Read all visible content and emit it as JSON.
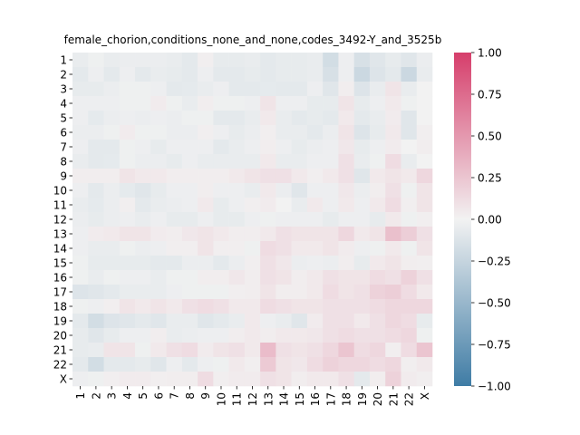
{
  "chart_data": {
    "type": "heatmap",
    "title": "female_chorion,conditions_none_and_none,codes_3492-Y_and_3525b",
    "xlabel": "",
    "ylabel": "",
    "row_labels": [
      "1",
      "2",
      "3",
      "4",
      "5",
      "6",
      "7",
      "8",
      "9",
      "10",
      "11",
      "12",
      "13",
      "14",
      "15",
      "16",
      "17",
      "18",
      "19",
      "20",
      "21",
      "22",
      "X"
    ],
    "col_labels": [
      "1",
      "2",
      "3",
      "4",
      "5",
      "6",
      "7",
      "8",
      "9",
      "10",
      "11",
      "12",
      "13",
      "14",
      "15",
      "16",
      "17",
      "18",
      "19",
      "20",
      "21",
      "22",
      "X"
    ],
    "colorbar": {
      "vmin": -1.0,
      "vmax": 1.0,
      "ticks": [
        "1.00",
        "0.75",
        "0.50",
        "0.25",
        "0.00",
        "−0.25",
        "−0.50",
        "−0.75",
        "−1.00"
      ],
      "colormap": [
        "#3f7ca5",
        "#f2f2f2",
        "#d63e6b"
      ]
    },
    "values": [
      [
        -0.05,
        -0.02,
        -0.05,
        -0.04,
        -0.04,
        -0.04,
        -0.05,
        -0.08,
        0.02,
        -0.06,
        -0.06,
        -0.05,
        -0.08,
        -0.06,
        -0.06,
        -0.05,
        -0.18,
        -0.03,
        -0.15,
        -0.1,
        -0.06,
        -0.1,
        -0.04
      ],
      [
        -0.08,
        -0.03,
        -0.08,
        -0.03,
        -0.08,
        -0.05,
        -0.06,
        -0.08,
        -0.03,
        -0.08,
        -0.08,
        -0.06,
        -0.08,
        -0.06,
        -0.06,
        -0.05,
        -0.15,
        -0.03,
        -0.22,
        -0.12,
        -0.08,
        -0.22,
        -0.05
      ],
      [
        -0.06,
        -0.06,
        -0.04,
        -0.02,
        -0.02,
        -0.03,
        -0.08,
        -0.07,
        -0.05,
        -0.03,
        -0.08,
        -0.08,
        -0.07,
        -0.08,
        -0.08,
        -0.03,
        -0.1,
        0.03,
        -0.12,
        -0.05,
        0.08,
        -0.05,
        0.0
      ],
      [
        -0.03,
        -0.03,
        -0.03,
        -0.02,
        -0.02,
        0.04,
        -0.02,
        -0.05,
        0.03,
        -0.02,
        -0.02,
        -0.03,
        0.08,
        -0.03,
        -0.03,
        -0.06,
        -0.06,
        0.08,
        -0.06,
        -0.03,
        0.05,
        -0.02,
        0.0
      ],
      [
        -0.03,
        -0.07,
        -0.04,
        -0.03,
        -0.04,
        -0.03,
        -0.04,
        -0.02,
        -0.02,
        -0.08,
        -0.08,
        -0.05,
        0.05,
        -0.05,
        -0.08,
        -0.06,
        -0.08,
        0.05,
        -0.08,
        -0.05,
        0.04,
        -0.1,
        0.0
      ],
      [
        -0.04,
        -0.04,
        -0.02,
        0.04,
        -0.02,
        -0.02,
        -0.04,
        -0.04,
        0.02,
        -0.03,
        -0.06,
        -0.04,
        0.02,
        -0.05,
        -0.05,
        -0.08,
        -0.04,
        0.08,
        -0.12,
        -0.06,
        0.05,
        -0.1,
        0.02
      ],
      [
        -0.03,
        -0.08,
        -0.08,
        -0.02,
        -0.03,
        -0.06,
        -0.03,
        -0.03,
        -0.03,
        -0.08,
        -0.05,
        -0.03,
        0.03,
        -0.03,
        -0.06,
        -0.04,
        -0.03,
        0.06,
        -0.06,
        -0.03,
        0.04,
        0.0,
        0.03
      ],
      [
        -0.05,
        -0.08,
        -0.07,
        -0.02,
        -0.04,
        -0.04,
        -0.06,
        -0.03,
        -0.05,
        -0.05,
        -0.05,
        -0.05,
        0.05,
        -0.05,
        -0.05,
        -0.03,
        -0.03,
        0.1,
        -0.05,
        -0.02,
        0.12,
        -0.05,
        0.0
      ],
      [
        0.03,
        0.03,
        0.03,
        0.08,
        0.05,
        0.05,
        0.03,
        0.03,
        0.03,
        0.03,
        0.05,
        0.08,
        0.1,
        0.1,
        0.05,
        0.02,
        0.05,
        0.1,
        -0.1,
        0.05,
        0.08,
        0.05,
        0.15
      ],
      [
        -0.03,
        -0.08,
        -0.04,
        -0.07,
        -0.1,
        -0.06,
        -0.03,
        -0.03,
        0.03,
        -0.03,
        -0.03,
        -0.05,
        0.05,
        -0.04,
        -0.1,
        -0.03,
        -0.03,
        0.06,
        -0.04,
        0.03,
        0.1,
        -0.02,
        0.08
      ],
      [
        -0.05,
        -0.07,
        -0.04,
        0.02,
        -0.08,
        -0.05,
        -0.04,
        -0.03,
        0.05,
        -0.06,
        -0.03,
        0.02,
        0.04,
        0.0,
        -0.05,
        0.05,
        -0.03,
        0.05,
        -0.03,
        0.05,
        0.12,
        0.02,
        0.08
      ],
      [
        -0.04,
        -0.06,
        -0.04,
        -0.03,
        -0.05,
        -0.03,
        -0.06,
        -0.06,
        -0.03,
        -0.06,
        -0.06,
        -0.03,
        -0.02,
        -0.03,
        -0.03,
        -0.03,
        -0.06,
        -0.03,
        -0.03,
        -0.06,
        0.05,
        -0.02,
        0.02
      ],
      [
        -0.03,
        0.04,
        0.05,
        0.08,
        0.08,
        0.04,
        0.03,
        0.06,
        0.08,
        0.05,
        0.03,
        0.03,
        0.05,
        0.1,
        0.08,
        0.08,
        0.08,
        0.15,
        0.05,
        0.08,
        0.28,
        0.2,
        0.1
      ],
      [
        -0.03,
        -0.05,
        -0.05,
        -0.02,
        -0.04,
        -0.03,
        0.02,
        0.02,
        0.08,
        0.02,
        0.02,
        -0.02,
        0.12,
        0.1,
        0.05,
        0.05,
        0.08,
        0.04,
        -0.03,
        -0.02,
        0.05,
        -0.02,
        0.08
      ],
      [
        -0.02,
        -0.06,
        -0.06,
        -0.06,
        -0.06,
        -0.08,
        -0.08,
        -0.04,
        -0.04,
        -0.08,
        -0.04,
        0.02,
        0.1,
        0.06,
        -0.04,
        -0.03,
        -0.04,
        0.03,
        -0.06,
        0.05,
        0.08,
        0.03,
        0.02
      ],
      [
        -0.02,
        -0.05,
        -0.02,
        -0.03,
        -0.03,
        -0.05,
        -0.02,
        -0.02,
        0.03,
        0.03,
        0.06,
        0.03,
        0.1,
        0.08,
        0.03,
        0.05,
        0.1,
        0.08,
        0.08,
        0.12,
        0.1,
        0.18,
        0.1
      ],
      [
        -0.12,
        -0.1,
        -0.08,
        -0.05,
        -0.05,
        -0.05,
        -0.03,
        -0.02,
        -0.02,
        -0.02,
        0.02,
        0.03,
        0.08,
        0.03,
        0.03,
        0.05,
        0.12,
        0.08,
        0.1,
        0.18,
        0.2,
        0.12,
        0.05
      ],
      [
        -0.02,
        -0.03,
        0.02,
        0.08,
        0.05,
        0.08,
        0.05,
        0.1,
        0.12,
        0.1,
        0.05,
        0.05,
        0.12,
        0.1,
        0.08,
        0.08,
        0.1,
        0.1,
        0.1,
        0.12,
        0.15,
        0.15,
        0.15
      ],
      [
        -0.08,
        -0.18,
        -0.12,
        -0.1,
        -0.08,
        -0.1,
        -0.05,
        -0.05,
        -0.1,
        -0.08,
        -0.05,
        0.05,
        -0.03,
        -0.05,
        -0.1,
        0.04,
        0.1,
        0.1,
        0.05,
        0.1,
        0.15,
        0.12,
        -0.06
      ],
      [
        -0.06,
        -0.1,
        -0.06,
        -0.03,
        -0.03,
        0.03,
        -0.05,
        -0.04,
        -0.03,
        -0.03,
        0.03,
        0.05,
        0.03,
        0.05,
        0.05,
        0.06,
        0.1,
        0.12,
        0.1,
        0.1,
        0.12,
        0.15,
        -0.02
      ],
      [
        -0.06,
        -0.05,
        0.08,
        0.08,
        -0.02,
        0.05,
        0.1,
        0.12,
        0.04,
        0.08,
        0.1,
        0.05,
        0.3,
        0.1,
        0.08,
        0.1,
        0.15,
        0.25,
        0.12,
        0.15,
        0.02,
        0.12,
        0.25
      ],
      [
        -0.08,
        -0.18,
        -0.08,
        -0.08,
        -0.06,
        -0.1,
        -0.03,
        -0.08,
        -0.03,
        -0.02,
        0.05,
        0.02,
        0.22,
        0.08,
        0.06,
        0.12,
        0.18,
        0.15,
        0.15,
        0.12,
        0.15,
        0.02,
        0.05
      ],
      [
        -0.03,
        -0.02,
        0.02,
        0.04,
        0.04,
        0.02,
        0.03,
        0.03,
        0.12,
        0.02,
        0.04,
        0.04,
        0.1,
        0.08,
        0.03,
        0.05,
        0.05,
        0.1,
        -0.08,
        0.03,
        0.18,
        0.04,
        0.02
      ]
    ]
  }
}
